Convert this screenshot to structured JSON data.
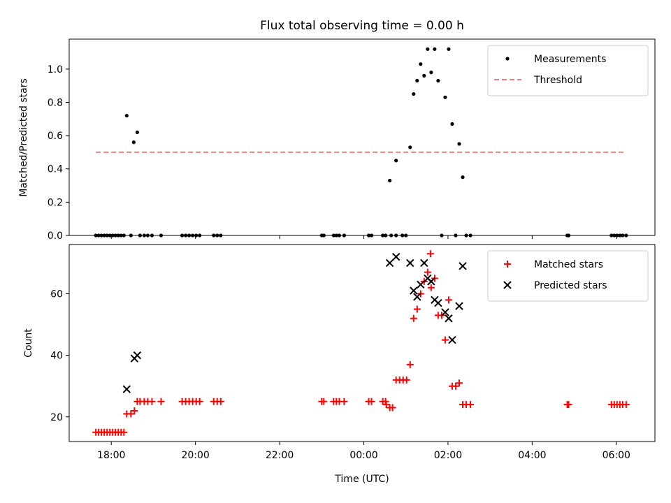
{
  "figure": {
    "title": "Flux total observing time = 0.00 h",
    "xlabel": "Time (UTC)"
  },
  "chart_data": [
    {
      "type": "scatter",
      "ylabel": "Matched/Predicted stars",
      "xlim": [
        "17:00",
        "06:55"
      ],
      "ylim": [
        0,
        1.18
      ],
      "yticks": [
        "0.0",
        "0.2",
        "0.4",
        "0.6",
        "0.8",
        "1.0"
      ],
      "xticks": [
        "18:00",
        "20:00",
        "22:00",
        "00:00",
        "02:00",
        "04:00",
        "06:00"
      ],
      "legend_position": "top-right",
      "series": [
        {
          "name": "Measurements",
          "marker": "dot",
          "color": "#000000",
          "points": [
            [
              "17:38",
              0
            ],
            [
              "17:42",
              0
            ],
            [
              "17:46",
              0
            ],
            [
              "17:50",
              0
            ],
            [
              "17:54",
              0
            ],
            [
              "17:58",
              0
            ],
            [
              "18:02",
              0
            ],
            [
              "18:06",
              0
            ],
            [
              "18:10",
              0
            ],
            [
              "18:14",
              0
            ],
            [
              "18:18",
              0
            ],
            [
              "18:22",
              0.72
            ],
            [
              "18:32",
              0.56
            ],
            [
              "18:37",
              0.62
            ],
            [
              "18:28",
              0
            ],
            [
              "18:41",
              0
            ],
            [
              "18:47",
              0
            ],
            [
              "18:52",
              0
            ],
            [
              "18:58",
              0
            ],
            [
              "19:11",
              0
            ],
            [
              "19:41",
              0
            ],
            [
              "19:46",
              0
            ],
            [
              "19:51",
              0
            ],
            [
              "19:56",
              0
            ],
            [
              "20:01",
              0
            ],
            [
              "20:06",
              0
            ],
            [
              "20:26",
              0
            ],
            [
              "20:31",
              0
            ],
            [
              "20:36",
              0
            ],
            [
              "23:00",
              0
            ],
            [
              "23:03",
              0
            ],
            [
              "23:17",
              0
            ],
            [
              "23:21",
              0
            ],
            [
              "23:25",
              0
            ],
            [
              "23:32",
              0
            ],
            [
              "00:07",
              0
            ],
            [
              "00:11",
              0
            ],
            [
              "00:27",
              0
            ],
            [
              "00:31",
              0
            ],
            [
              "00:39",
              0
            ],
            [
              "00:46",
              0
            ],
            [
              "00:55",
              0
            ],
            [
              "01:00",
              0
            ],
            [
              "00:37",
              0.33
            ],
            [
              "00:46",
              0.45
            ],
            [
              "01:06",
              0.53
            ],
            [
              "01:11",
              0.85
            ],
            [
              "01:16",
              0.93
            ],
            [
              "01:21",
              1.03
            ],
            [
              "01:26",
              0.96
            ],
            [
              "01:31",
              1.12
            ],
            [
              "01:36",
              0.98
            ],
            [
              "01:41",
              1.12
            ],
            [
              "01:46",
              0.93
            ],
            [
              "01:56",
              0.83
            ],
            [
              "02:01",
              1.12
            ],
            [
              "02:06",
              0.67
            ],
            [
              "02:16",
              0.55
            ],
            [
              "02:21",
              0.35
            ],
            [
              "01:51",
              0
            ],
            [
              "02:11",
              0
            ],
            [
              "02:26",
              0
            ],
            [
              "02:32",
              0
            ],
            [
              "04:50",
              0
            ],
            [
              "04:52",
              0
            ],
            [
              "05:53",
              0
            ],
            [
              "05:57",
              0
            ],
            [
              "06:01",
              0
            ],
            [
              "06:05",
              0
            ],
            [
              "06:09",
              0
            ],
            [
              "06:14",
              0
            ]
          ]
        },
        {
          "name": "Threshold",
          "marker": "dashed-line",
          "color": "#f08080",
          "points": [
            [
              "17:38",
              0.5
            ],
            [
              "06:10",
              0.5
            ]
          ]
        }
      ]
    },
    {
      "type": "scatter",
      "ylabel": "Count",
      "xlim": [
        "17:00",
        "06:55"
      ],
      "ylim": [
        12,
        76
      ],
      "yticks": [
        "20",
        "40",
        "60"
      ],
      "xticks": [
        "18:00",
        "20:00",
        "22:00",
        "00:00",
        "02:00",
        "04:00",
        "06:00"
      ],
      "legend_position": "top-right",
      "series": [
        {
          "name": "Matched stars",
          "marker": "plus",
          "color": "#ff0000",
          "points": [
            [
              "17:38",
              15
            ],
            [
              "17:42",
              15
            ],
            [
              "17:46",
              15
            ],
            [
              "17:50",
              15
            ],
            [
              "17:54",
              15
            ],
            [
              "17:58",
              15
            ],
            [
              "18:02",
              15
            ],
            [
              "18:06",
              15
            ],
            [
              "18:10",
              15
            ],
            [
              "18:14",
              15
            ],
            [
              "18:18",
              15
            ],
            [
              "18:22",
              21
            ],
            [
              "18:28",
              21
            ],
            [
              "18:33",
              22
            ],
            [
              "18:37",
              25
            ],
            [
              "18:41",
              25
            ],
            [
              "18:47",
              25
            ],
            [
              "18:52",
              25
            ],
            [
              "18:58",
              25
            ],
            [
              "19:11",
              25
            ],
            [
              "19:41",
              25
            ],
            [
              "19:46",
              25
            ],
            [
              "19:51",
              25
            ],
            [
              "19:56",
              25
            ],
            [
              "20:01",
              25
            ],
            [
              "20:06",
              25
            ],
            [
              "20:26",
              25
            ],
            [
              "20:31",
              25
            ],
            [
              "20:36",
              25
            ],
            [
              "23:00",
              25
            ],
            [
              "23:03",
              25
            ],
            [
              "23:17",
              25
            ],
            [
              "23:21",
              25
            ],
            [
              "23:25",
              25
            ],
            [
              "23:32",
              25
            ],
            [
              "00:07",
              25
            ],
            [
              "00:11",
              25
            ],
            [
              "00:27",
              25
            ],
            [
              "00:31",
              25
            ],
            [
              "00:32",
              24
            ],
            [
              "00:37",
              23
            ],
            [
              "00:41",
              23
            ],
            [
              "00:46",
              32
            ],
            [
              "00:51",
              32
            ],
            [
              "00:56",
              32
            ],
            [
              "01:01",
              32
            ],
            [
              "01:06",
              37
            ],
            [
              "01:11",
              52
            ],
            [
              "01:16",
              55
            ],
            [
              "01:21",
              60
            ],
            [
              "01:26",
              64
            ],
            [
              "01:31",
              67
            ],
            [
              "01:35",
              73
            ],
            [
              "01:36",
              62
            ],
            [
              "01:41",
              65
            ],
            [
              "01:46",
              53
            ],
            [
              "01:51",
              53
            ],
            [
              "01:56",
              45
            ],
            [
              "02:01",
              58
            ],
            [
              "02:06",
              30
            ],
            [
              "02:11",
              30
            ],
            [
              "02:16",
              31
            ],
            [
              "02:21",
              24
            ],
            [
              "02:26",
              24
            ],
            [
              "02:32",
              24
            ],
            [
              "04:50",
              24
            ],
            [
              "04:52",
              24
            ],
            [
              "05:53",
              24
            ],
            [
              "05:57",
              24
            ],
            [
              "06:01",
              24
            ],
            [
              "06:05",
              24
            ],
            [
              "06:09",
              24
            ],
            [
              "06:14",
              24
            ]
          ]
        },
        {
          "name": "Predicted stars",
          "marker": "x",
          "color": "#000000",
          "points": [
            [
              "18:22",
              29
            ],
            [
              "18:33",
              39
            ],
            [
              "18:37",
              40
            ],
            [
              "00:37",
              70
            ],
            [
              "00:46",
              72
            ],
            [
              "01:06",
              70
            ],
            [
              "01:11",
              61
            ],
            [
              "01:16",
              59
            ],
            [
              "01:21",
              63
            ],
            [
              "01:26",
              70
            ],
            [
              "01:31",
              65
            ],
            [
              "01:36",
              64
            ],
            [
              "01:41",
              58
            ],
            [
              "01:46",
              57
            ],
            [
              "01:56",
              54
            ],
            [
              "02:01",
              52
            ],
            [
              "02:06",
              45
            ],
            [
              "02:16",
              56
            ],
            [
              "02:21",
              69
            ]
          ]
        }
      ]
    }
  ]
}
